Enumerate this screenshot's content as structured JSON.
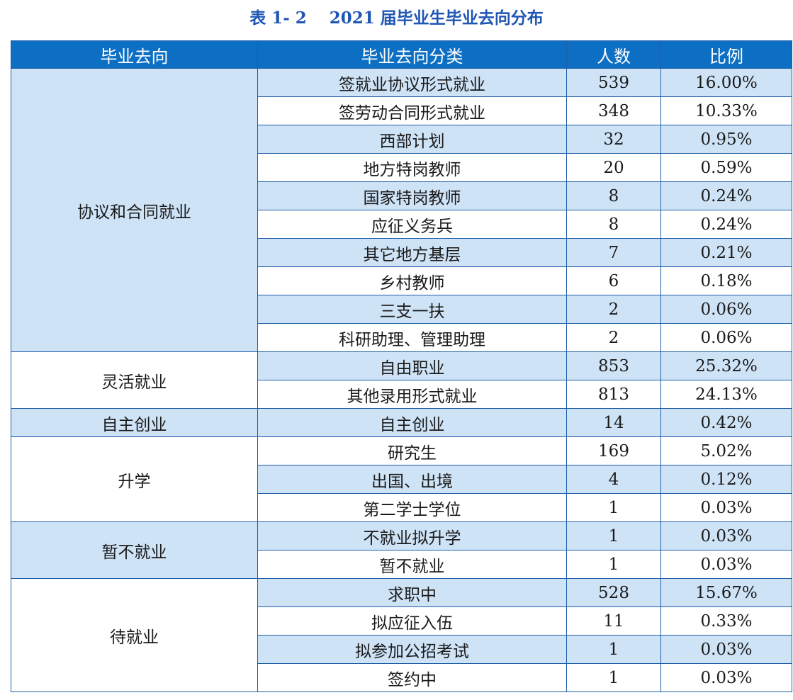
{
  "caption": "表 1- 2    2021 届毕业生毕业去向分布",
  "headers": [
    "毕业去向",
    "毕业去向分类",
    "人数",
    "比例"
  ],
  "groups": [
    {
      "name": "协议和合同就业",
      "rows": [
        {
          "category": "签就业协议形式就业",
          "count": "539",
          "ratio": "16.00%"
        },
        {
          "category": "签劳动合同形式就业",
          "count": "348",
          "ratio": "10.33%"
        },
        {
          "category": "西部计划",
          "count": "32",
          "ratio": "0.95%"
        },
        {
          "category": "地方特岗教师",
          "count": "20",
          "ratio": "0.59%"
        },
        {
          "category": "国家特岗教师",
          "count": "8",
          "ratio": "0.24%"
        },
        {
          "category": "应征义务兵",
          "count": "8",
          "ratio": "0.24%"
        },
        {
          "category": "其它地方基层",
          "count": "7",
          "ratio": "0.21%"
        },
        {
          "category": "乡村教师",
          "count": "6",
          "ratio": "0.18%"
        },
        {
          "category": "三支一扶",
          "count": "2",
          "ratio": "0.06%"
        },
        {
          "category": "科研助理、管理助理",
          "count": "2",
          "ratio": "0.06%"
        }
      ]
    },
    {
      "name": "灵活就业",
      "rows": [
        {
          "category": "自由职业",
          "count": "853",
          "ratio": "25.32%"
        },
        {
          "category": "其他录用形式就业",
          "count": "813",
          "ratio": "24.13%"
        }
      ]
    },
    {
      "name": "自主创业",
      "rows": [
        {
          "category": "自主创业",
          "count": "14",
          "ratio": "0.42%"
        }
      ]
    },
    {
      "name": "升学",
      "rows": [
        {
          "category": "研究生",
          "count": "169",
          "ratio": "5.02%"
        },
        {
          "category": "出国、出境",
          "count": "4",
          "ratio": "0.12%"
        },
        {
          "category": "第二学士学位",
          "count": "1",
          "ratio": "0.03%"
        }
      ]
    },
    {
      "name": "暂不就业",
      "rows": [
        {
          "category": "不就业拟升学",
          "count": "1",
          "ratio": "0.03%"
        },
        {
          "category": "暂不就业",
          "count": "1",
          "ratio": "0.03%"
        }
      ]
    },
    {
      "name": "待就业",
      "rows": [
        {
          "category": "求职中",
          "count": "528",
          "ratio": "15.67%"
        },
        {
          "category": "拟应征入伍",
          "count": "11",
          "ratio": "0.33%"
        },
        {
          "category": "拟参加公招考试",
          "count": "1",
          "ratio": "0.03%"
        },
        {
          "category": "签约中",
          "count": "1",
          "ratio": "0.03%"
        }
      ]
    }
  ],
  "colors": {
    "caption": "#1f56b3",
    "header_bg": "#0d6fc4",
    "band_bg": "#cfe3f7",
    "border": "#1f5da8"
  }
}
